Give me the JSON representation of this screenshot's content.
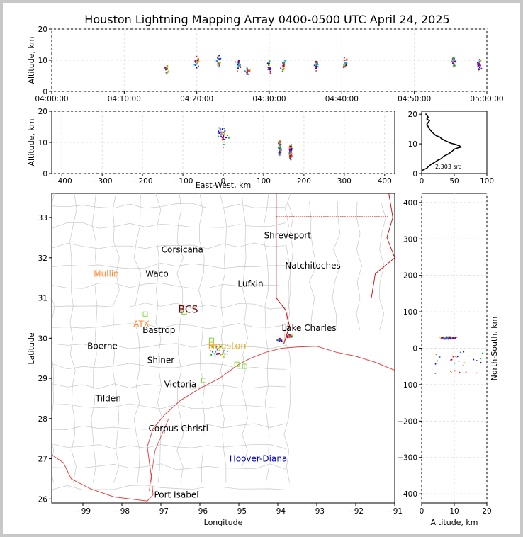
{
  "chart_data": [
    {
      "type": "scatter",
      "panel": "altitude-vs-time",
      "title": "Houston Lightning Mapping Array 0400-0500 UTC April 24, 2025",
      "ylabel": "Altitude, km",
      "xlabel": "",
      "xlim_minutes": [
        0,
        60
      ],
      "ylim": [
        0,
        20
      ],
      "x_tick_labels": [
        "04:00:00",
        "04:10:00",
        "04:20:00",
        "04:30:00",
        "04:40:00",
        "04:50:00",
        "05:00:00"
      ],
      "x_tick_values": [
        0,
        10,
        20,
        30,
        40,
        50,
        60
      ],
      "y_ticks": [
        0,
        10,
        20
      ],
      "clusters": [
        {
          "t": 15.8,
          "alt": 7.5
        },
        {
          "t": 20.0,
          "alt": 9.5
        },
        {
          "t": 23.0,
          "alt": 9.5
        },
        {
          "t": 25.8,
          "alt": 8.5
        },
        {
          "t": 27.0,
          "alt": 6.5
        },
        {
          "t": 30.0,
          "alt": 8.0
        },
        {
          "t": 32.0,
          "alt": 8.0
        },
        {
          "t": 36.5,
          "alt": 8.5
        },
        {
          "t": 40.5,
          "alt": 9.0
        },
        {
          "t": 55.5,
          "alt": 9.0
        },
        {
          "t": 59.0,
          "alt": 8.0
        }
      ],
      "grid": true
    },
    {
      "type": "scatter",
      "panel": "altitude-vs-east-west",
      "xlabel": "East-West, km",
      "ylabel": "Altitude, km",
      "xlim": [
        -425,
        425
      ],
      "ylim": [
        0,
        20
      ],
      "x_ticks": [
        -400,
        -300,
        -200,
        -100,
        0,
        100,
        200,
        300,
        400
      ],
      "y_ticks": [
        0,
        10,
        20
      ],
      "clusters": [
        {
          "x": 140,
          "alt": 8
        },
        {
          "x": 167,
          "alt": 7
        },
        {
          "x": 0,
          "alt": 12
        }
      ],
      "grid": true
    },
    {
      "type": "line",
      "panel": "altitude-histogram",
      "xlim": [
        0,
        100
      ],
      "ylim": [
        0,
        21
      ],
      "x_ticks": [
        0,
        50,
        100
      ],
      "y_ticks": [
        0,
        10,
        20
      ],
      "annotation": "2,303 src",
      "x": [
        0,
        2,
        5,
        8,
        10,
        14,
        20,
        25,
        30,
        32,
        35,
        40,
        45,
        48,
        50,
        55,
        60,
        58,
        52,
        45,
        40,
        35,
        30,
        28,
        22,
        18,
        15,
        12,
        10,
        8,
        10,
        12,
        8,
        10,
        8,
        6
      ],
      "y": [
        0.8,
        1.2,
        1.5,
        1.8,
        2.3,
        3.0,
        3.8,
        4.5,
        5.0,
        5.5,
        6.0,
        6.5,
        7.2,
        7.8,
        8.2,
        8.6,
        8.9,
        9.3,
        9.8,
        10.2,
        10.7,
        11.2,
        11.8,
        12.3,
        12.8,
        13.5,
        14.2,
        15.0,
        15.8,
        16.6,
        17.2,
        17.8,
        18.4,
        19.0,
        19.6,
        20.2
      ]
    },
    {
      "type": "scatter",
      "panel": "plan-view-map",
      "xlabel": "Longitude",
      "ylabel": "Latitude",
      "xlim": [
        -99.8,
        -91
      ],
      "ylim": [
        25.9,
        33.6
      ],
      "x_ticks": [
        -99,
        -98,
        -97,
        -96,
        -95,
        -94,
        -93,
        -92,
        -91
      ],
      "y_ticks": [
        26,
        27,
        28,
        29,
        30,
        31,
        32,
        33
      ],
      "cities": [
        {
          "name": "Shreveport",
          "lon": -93.75,
          "lat": 32.55,
          "color": "#000000"
        },
        {
          "name": "Corsicana",
          "lon": -96.45,
          "lat": 32.2,
          "color": "#000000"
        },
        {
          "name": "Natchitoches",
          "lon": -93.1,
          "lat": 31.8,
          "color": "#000000"
        },
        {
          "name": "Mullin",
          "lon": -98.4,
          "lat": 31.6,
          "color": "#ff8c3c"
        },
        {
          "name": "Waco",
          "lon": -97.1,
          "lat": 31.6,
          "color": "#000000"
        },
        {
          "name": "Lufkin",
          "lon": -94.7,
          "lat": 31.35,
          "color": "#000000"
        },
        {
          "name": "BCS",
          "lon": -96.3,
          "lat": 30.7,
          "color": "#700000"
        },
        {
          "name": "ATX",
          "lon": -97.5,
          "lat": 30.35,
          "color": "#ff8c3c"
        },
        {
          "name": "Bastrop",
          "lon": -97.05,
          "lat": 30.2,
          "color": "#000000"
        },
        {
          "name": "Lake Charles",
          "lon": -93.2,
          "lat": 30.25,
          "color": "#000000"
        },
        {
          "name": "Boerne",
          "lon": -98.5,
          "lat": 29.8,
          "color": "#000000"
        },
        {
          "name": "Houston",
          "lon": -95.3,
          "lat": 29.8,
          "color": "#e8b030"
        },
        {
          "name": "Shiner",
          "lon": -97.0,
          "lat": 29.45,
          "color": "#000000"
        },
        {
          "name": "Victoria",
          "lon": -96.5,
          "lat": 28.85,
          "color": "#000000"
        },
        {
          "name": "Tilden",
          "lon": -98.35,
          "lat": 28.5,
          "color": "#000000"
        },
        {
          "name": "Corpus Christi",
          "lon": -96.55,
          "lat": 27.75,
          "color": "#000000"
        },
        {
          "name": "Hoover-Diana",
          "lon": -94.5,
          "lat": 27.0,
          "color": "#0000cc"
        },
        {
          "name": "Port Isabel",
          "lon": -96.6,
          "lat": 26.1,
          "color": "#000000"
        }
      ],
      "stations": [
        {
          "lon": -97.4,
          "lat": 30.6
        },
        {
          "lon": -96.4,
          "lat": 30.65
        },
        {
          "lon": -95.7,
          "lat": 29.95
        },
        {
          "lon": -94.85,
          "lat": 29.3
        },
        {
          "lon": -95.9,
          "lat": 28.95
        },
        {
          "lon": -95.05,
          "lat": 29.35
        }
      ],
      "clusters": [
        {
          "lon": -93.95,
          "lat": 29.95
        },
        {
          "lon": -93.7,
          "lat": 30.05
        },
        {
          "lon": -95.5,
          "lat": 29.7
        }
      ]
    },
    {
      "type": "scatter",
      "panel": "north-south-vs-altitude",
      "xlabel": "Altitude, km",
      "ylabel": "North-South, km",
      "xlim": [
        0,
        20
      ],
      "ylim": [
        -425,
        425
      ],
      "x_ticks": [
        0,
        10,
        20
      ],
      "y_ticks": [
        -400,
        -300,
        -200,
        -100,
        0,
        100,
        200,
        300,
        400
      ],
      "clusters": [
        {
          "alt": 8,
          "ns": 28
        }
      ],
      "grid": true
    }
  ]
}
